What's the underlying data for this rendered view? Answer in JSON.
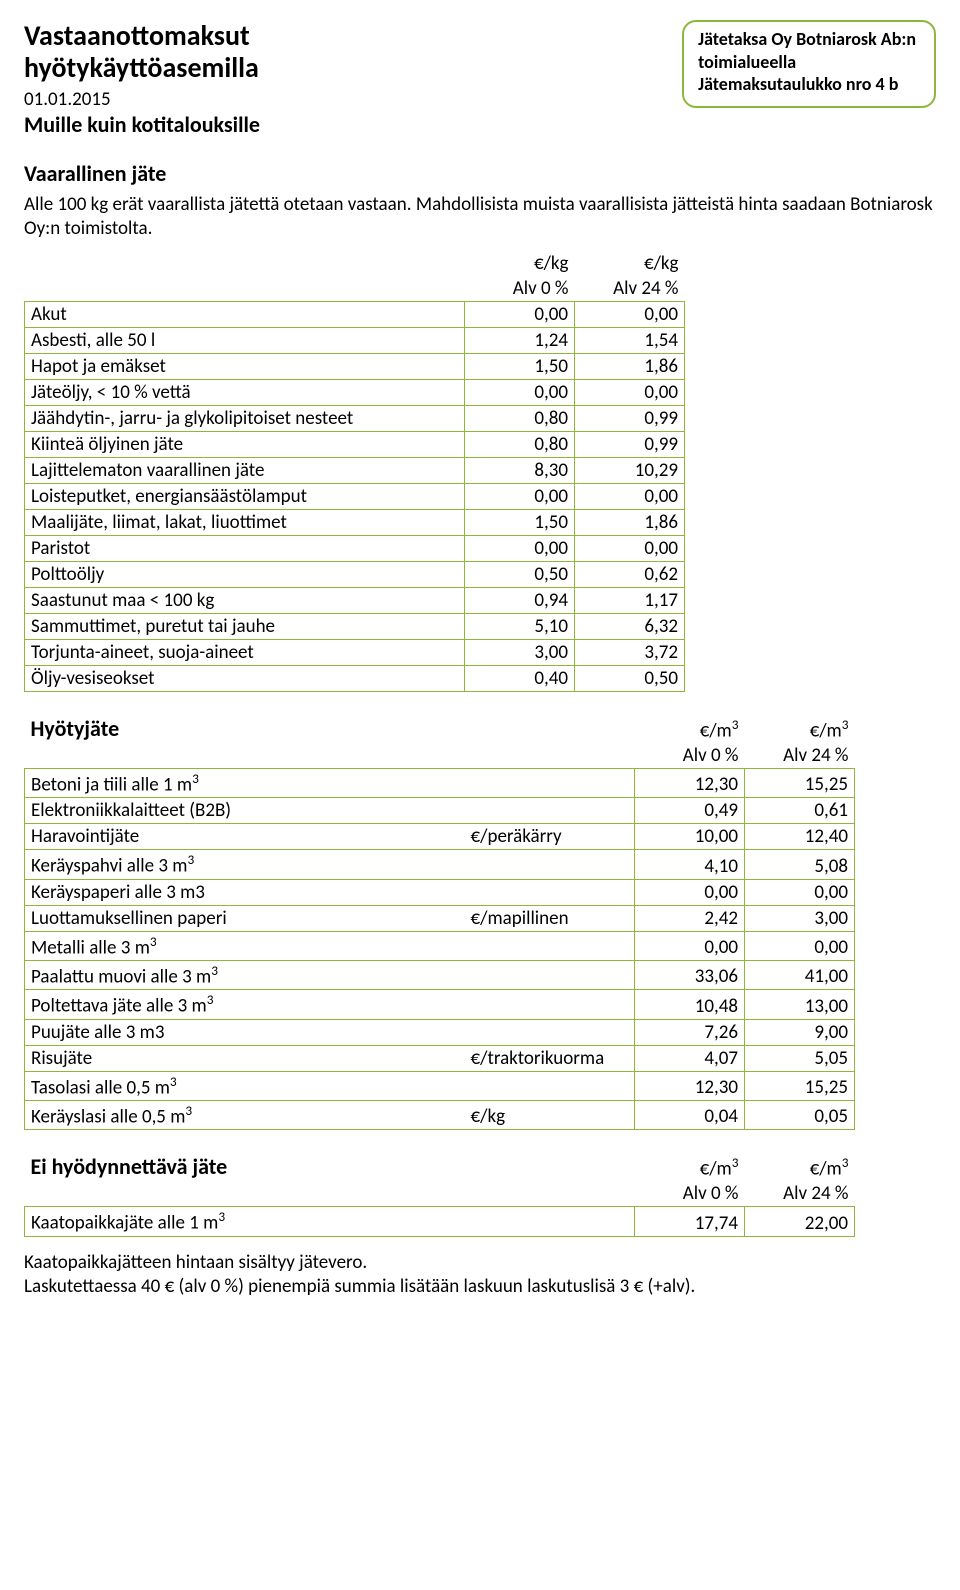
{
  "colors": {
    "border": "#8fb63a",
    "text": "#000000",
    "bg": "#ffffff"
  },
  "header": {
    "title_line1": "Vastaanottomaksut",
    "title_line2": "hyötykäyttöasemilla",
    "date": "01.01.2015",
    "subtitle": "Muille kuin kotitalouksille",
    "box_line1": "Jätetaksa Oy Botniarosk Ab:n",
    "box_line2": "toimialueella",
    "box_line3": "Jätemaksutaulukko nro 4 b"
  },
  "section1": {
    "heading": "Vaarallinen jäte",
    "intro": "Alle 100 kg erät vaarallista jätettä otetaan vastaan. Mahdollisista muista vaarallisista jätteistä hinta saadaan Botniarosk Oy:n toimistolta.",
    "unit1": "€/kg",
    "unit2": "€/kg",
    "alv1": "Alv 0 %",
    "alv2": "Alv 24 %",
    "rows": [
      {
        "label": "Akut",
        "v1": "0,00",
        "v2": "0,00"
      },
      {
        "label": "Asbesti, alle 50 l",
        "v1": "1,24",
        "v2": "1,54"
      },
      {
        "label": "Hapot ja emäkset",
        "v1": "1,50",
        "v2": "1,86"
      },
      {
        "label": "Jäteöljy, < 10 % vettä",
        "v1": "0,00",
        "v2": "0,00"
      },
      {
        "label": "Jäähdytin-, jarru- ja glykolipitoiset nesteet",
        "v1": "0,80",
        "v2": "0,99"
      },
      {
        "label": "Kiinteä öljyinen jäte",
        "v1": "0,80",
        "v2": "0,99"
      },
      {
        "label": "Lajittelematon vaarallinen jäte",
        "v1": "8,30",
        "v2": "10,29"
      },
      {
        "label": "Loisteputket, energiansäästölamput",
        "v1": "0,00",
        "v2": "0,00"
      },
      {
        "label": "Maalijäte, liimat, lakat, liuottimet",
        "v1": "1,50",
        "v2": "1,86"
      },
      {
        "label": "Paristot",
        "v1": "0,00",
        "v2": "0,00"
      },
      {
        "label": "Polttoöljy",
        "v1": "0,50",
        "v2": "0,62"
      },
      {
        "label": "Saastunut maa < 100 kg",
        "v1": "0,94",
        "v2": "1,17"
      },
      {
        "label": "Sammuttimet, puretut tai jauhe",
        "v1": "5,10",
        "v2": "6,32"
      },
      {
        "label": "Torjunta-aineet, suoja-aineet",
        "v1": "3,00",
        "v2": "3,72"
      },
      {
        "label": "Öljy-vesiseokset",
        "v1": "0,40",
        "v2": "0,50"
      }
    ]
  },
  "section2": {
    "heading": "Hyötyjäte",
    "unit1": "€/m",
    "unit2": "€/m",
    "unit_sup": "3",
    "alv1": "Alv 0 %",
    "alv2": "Alv 24 %",
    "rows": [
      {
        "label": "Betoni ja tiili alle 1 m",
        "sup": "3",
        "extra": "",
        "v1": "12,30",
        "v2": "15,25"
      },
      {
        "label": "Elektroniikkalaitteet (B2B)",
        "extra": "",
        "v1": "0,49",
        "v2": "0,61"
      },
      {
        "label": "Haravointijäte",
        "extra": "€/peräkärry",
        "v1": "10,00",
        "v2": "12,40"
      },
      {
        "label": "Keräyspahvi alle 3 m",
        "sup": "3",
        "extra": "",
        "v1": "4,10",
        "v2": "5,08"
      },
      {
        "label": "Keräyspaperi alle 3 m3",
        "extra": "",
        "v1": "0,00",
        "v2": "0,00"
      },
      {
        "label": "Luottamuksellinen paperi",
        "extra": "€/mapillinen",
        "v1": "2,42",
        "v2": "3,00"
      },
      {
        "label": "Metalli alle 3 m",
        "sup": "3",
        "extra": "",
        "v1": "0,00",
        "v2": "0,00"
      },
      {
        "label": "Paalattu muovi alle 3 m",
        "sup": "3",
        "extra": "",
        "v1": "33,06",
        "v2": "41,00"
      },
      {
        "label": "Poltettava jäte alle 3 m",
        "sup": "3",
        "extra": "",
        "v1": "10,48",
        "v2": "13,00"
      },
      {
        "label": "Puujäte alle 3 m3",
        "extra": "",
        "v1": "7,26",
        "v2": "9,00"
      },
      {
        "label": "Risujäte",
        "extra": "€/traktorikuorma",
        "v1": "4,07",
        "v2": "5,05"
      },
      {
        "label": "Tasolasi alle 0,5 m",
        "sup": "3",
        "extra": "",
        "v1": "12,30",
        "v2": "15,25"
      },
      {
        "label": "Keräyslasi alle 0,5 m",
        "sup": "3",
        "extra": "€/kg",
        "v1": "0,04",
        "v2": "0,05"
      }
    ]
  },
  "section3": {
    "heading": "Ei hyödynnettävä jäte",
    "unit1": "€/m",
    "unit2": "€/m",
    "unit_sup": "3",
    "alv1": "Alv 0 %",
    "alv2": "Alv 24 %",
    "rows": [
      {
        "label": "Kaatopaikkajäte alle 1 m",
        "sup": "3",
        "extra": "",
        "v1": "17,74",
        "v2": "22,00"
      }
    ]
  },
  "footer": {
    "line1": "Kaatopaikkajätteen hintaan sisältyy jätevero.",
    "line2": "Laskutettaessa 40 € (alv 0 %) pienempiä summia lisätään laskuun laskutuslisä 3 € (+alv)."
  }
}
